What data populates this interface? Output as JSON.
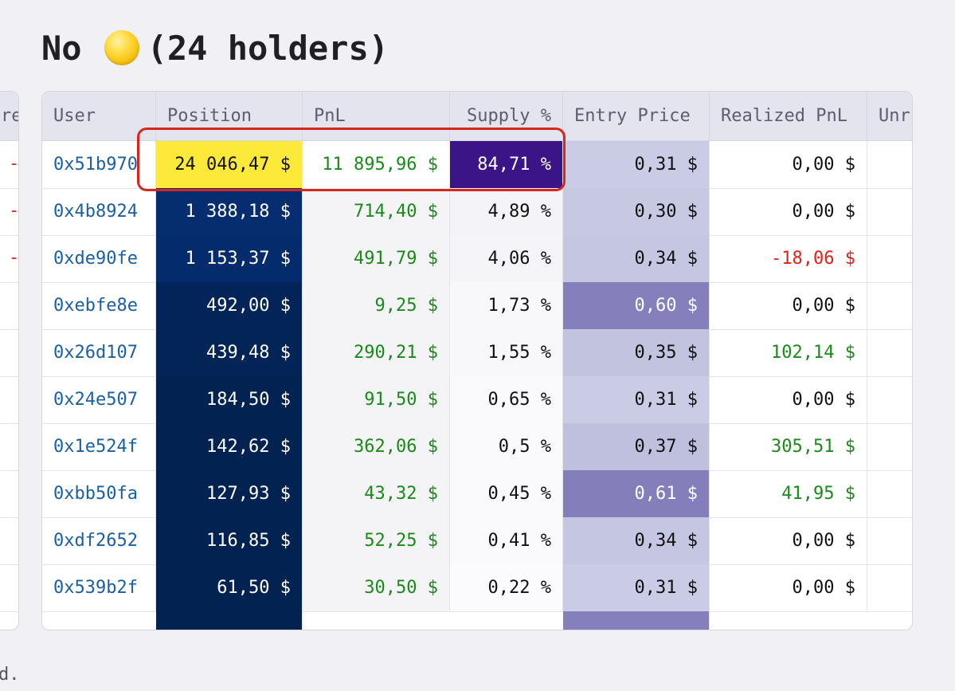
{
  "title": {
    "prefix": "No",
    "icon": "yellow-circle-icon",
    "suffix": "(24 holders)"
  },
  "left_table": {
    "header_fragment": "re",
    "row_fragments": [
      "-",
      "-",
      "-",
      "",
      "",
      "",
      "",
      "",
      "",
      ""
    ]
  },
  "table": {
    "columns": [
      "User",
      "Position",
      "PnL",
      "Supply %",
      "Entry Price",
      "Realized PnL",
      "Unr"
    ],
    "rows": [
      {
        "user": "0x51b970",
        "position": "24 046,47 $",
        "pnl": "11 895,96 $",
        "supply": "84,71 %",
        "entry": "0,31 $",
        "realized": "0,00 $",
        "pos_bg": "#fde93a",
        "pos_color": "#111111",
        "pnl_bg": "#ffffff",
        "sup_bg": "#3b1587",
        "sup_color": "#ffffff",
        "entry_bg": "#cacbe4",
        "entry_color": "#111111",
        "realized_color": "#111111"
      },
      {
        "user": "0x4b8924",
        "position": "1 388,18 $",
        "pnl": "714,40 $",
        "supply": "4,89 %",
        "entry": "0,30 $",
        "realized": "0,00 $",
        "pos_bg": "#062d6f",
        "pos_color": "#ffffff",
        "pnl_bg": "#f4f4f6",
        "sup_bg": "#f4f4f8",
        "sup_color": "#111111",
        "entry_bg": "#c7c8e2",
        "entry_color": "#111111",
        "realized_color": "#111111"
      },
      {
        "user": "0xde90fe",
        "position": "1 153,37 $",
        "pnl": "491,79 $",
        "supply": "4,06 %",
        "entry": "0,34 $",
        "realized": "-18,06 $",
        "pos_bg": "#042b6b",
        "pos_color": "#ffffff",
        "pnl_bg": "#f4f4f6",
        "sup_bg": "#f5f5f9",
        "sup_color": "#111111",
        "entry_bg": "#c5c6e1",
        "entry_color": "#111111",
        "realized_color": "#e0201a"
      },
      {
        "user": "0xebfe8e",
        "position": "492,00 $",
        "pnl": "9,25 $",
        "supply": "1,73 %",
        "entry": "0,60 $",
        "realized": "0,00 $",
        "pos_bg": "#022458",
        "pos_color": "#ffffff",
        "pnl_bg": "#f4f4f6",
        "sup_bg": "#f8f8fb",
        "sup_color": "#111111",
        "entry_bg": "#8580bc",
        "entry_color": "#ffffff",
        "realized_color": "#111111"
      },
      {
        "user": "0x26d107",
        "position": "439,48 $",
        "pnl": "290,21 $",
        "supply": "1,55 %",
        "entry": "0,35 $",
        "realized": "102,14 $",
        "pos_bg": "#022456",
        "pos_color": "#ffffff",
        "pnl_bg": "#f4f4f6",
        "sup_bg": "#f8f8fb",
        "sup_color": "#111111",
        "entry_bg": "#c2c3df",
        "entry_color": "#111111",
        "realized_color": "#1a8a1a"
      },
      {
        "user": "0x24e507",
        "position": "184,50 $",
        "pnl": "91,50 $",
        "supply": "0,65 %",
        "entry": "0,31 $",
        "realized": "0,00 $",
        "pos_bg": "#022352",
        "pos_color": "#ffffff",
        "pnl_bg": "#f4f4f6",
        "sup_bg": "#fafafc",
        "sup_color": "#111111",
        "entry_bg": "#cacbe4",
        "entry_color": "#111111",
        "realized_color": "#111111"
      },
      {
        "user": "0x1e524f",
        "position": "142,62 $",
        "pnl": "362,06 $",
        "supply": "0,5 %",
        "entry": "0,37 $",
        "realized": "305,51 $",
        "pos_bg": "#022352",
        "pos_color": "#ffffff",
        "pnl_bg": "#f4f4f6",
        "sup_bg": "#fafafc",
        "sup_color": "#111111",
        "entry_bg": "#bfc0dd",
        "entry_color": "#111111",
        "realized_color": "#1a8a1a"
      },
      {
        "user": "0xbb50fa",
        "position": "127,93 $",
        "pnl": "43,32 $",
        "supply": "0,45 %",
        "entry": "0,61 $",
        "realized": "41,95 $",
        "pos_bg": "#022352",
        "pos_color": "#ffffff",
        "pnl_bg": "#f4f4f6",
        "sup_bg": "#fafafc",
        "sup_color": "#111111",
        "entry_bg": "#847fbb",
        "entry_color": "#ffffff",
        "realized_color": "#1a8a1a"
      },
      {
        "user": "0xdf2652",
        "position": "116,85 $",
        "pnl": "52,25 $",
        "supply": "0,41 %",
        "entry": "0,34 $",
        "realized": "0,00 $",
        "pos_bg": "#022352",
        "pos_color": "#ffffff",
        "pnl_bg": "#f4f4f6",
        "sup_bg": "#fafafc",
        "sup_color": "#111111",
        "entry_bg": "#c5c6e1",
        "entry_color": "#111111",
        "realized_color": "#111111"
      },
      {
        "user": "0x539b2f",
        "position": "61,50 $",
        "pnl": "30,50 $",
        "supply": "0,22 %",
        "entry": "0,31 $",
        "realized": "0,00 $",
        "pos_bg": "#022352",
        "pos_color": "#ffffff",
        "pnl_bg": "#f4f4f6",
        "sup_bg": "#fbfbfd",
        "sup_color": "#111111",
        "entry_bg": "#cacbe4",
        "entry_color": "#111111",
        "realized_color": "#111111"
      }
    ],
    "partial_row": {
      "pos_bg": "#022352",
      "entry_bg": "#8580bc"
    }
  },
  "colors": {
    "link": "#1b5fa4",
    "positive": "#1a8a1a",
    "negative": "#e0201a",
    "highlight_box": "#d7261e"
  },
  "footer_fragment": "d."
}
